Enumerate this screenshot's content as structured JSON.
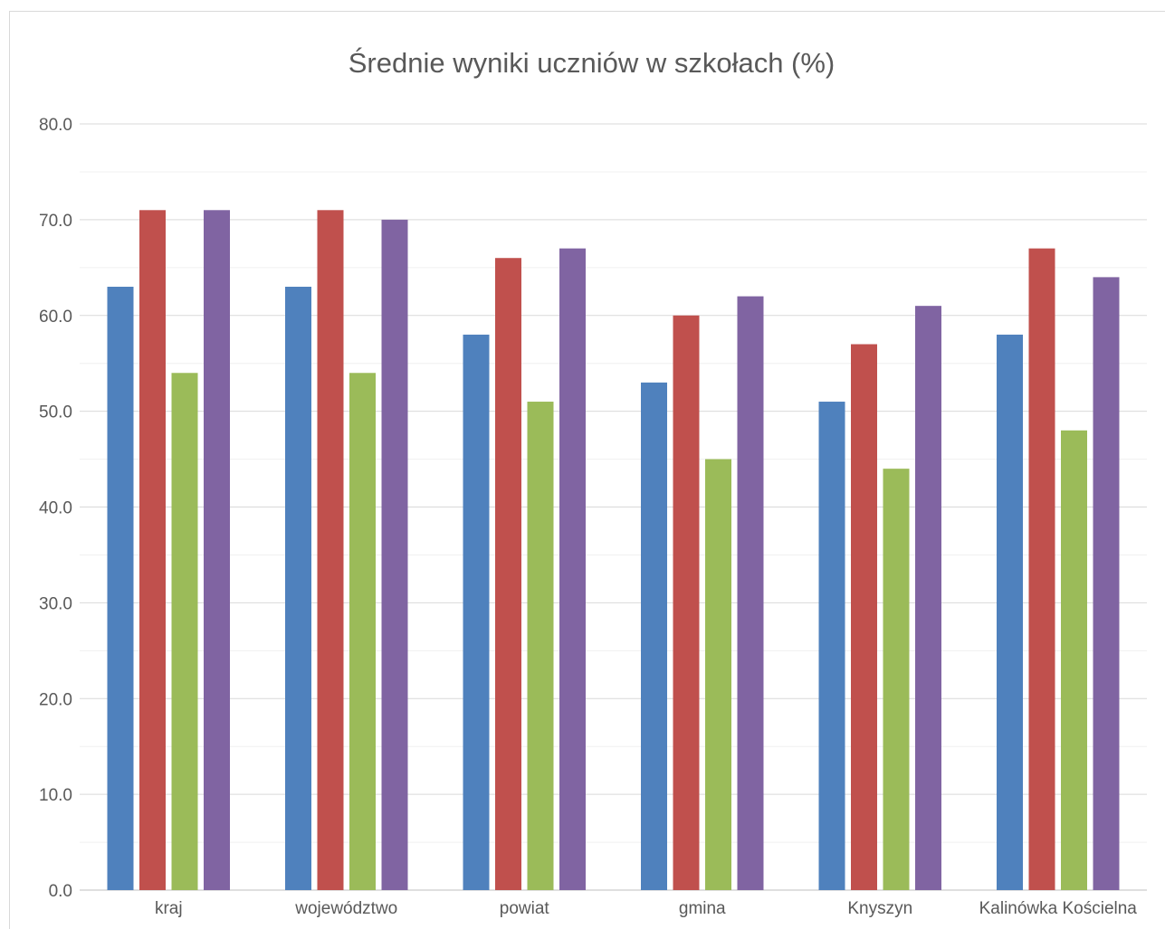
{
  "chart_data": {
    "type": "bar",
    "title": "Średnie wyniki uczniów w szkołach (%)",
    "xlabel": "",
    "ylabel": "",
    "ylim": [
      0,
      80
    ],
    "yticks": [
      "0.0",
      "10.0",
      "20.0",
      "30.0",
      "40.0",
      "50.0",
      "60.0",
      "70.0",
      "80.0"
    ],
    "ytick_values": [
      0,
      10,
      20,
      30,
      40,
      50,
      60,
      70,
      80
    ],
    "grid": true,
    "legend": "none",
    "categories": [
      "kraj",
      "województwo",
      "powiat",
      "gmina",
      "Knyszyn",
      "Kalinówka Kościelna"
    ],
    "series": [
      {
        "color": "#4f81bd",
        "values": [
          63,
          63,
          58,
          53,
          51,
          58
        ]
      },
      {
        "color": "#c0504d",
        "values": [
          71,
          71,
          66,
          60,
          57,
          67
        ]
      },
      {
        "color": "#9bbb59",
        "values": [
          54,
          54,
          51,
          45,
          44,
          48
        ]
      },
      {
        "color": "#8064a2",
        "values": [
          71,
          70,
          67,
          62,
          61,
          64
        ]
      }
    ]
  }
}
